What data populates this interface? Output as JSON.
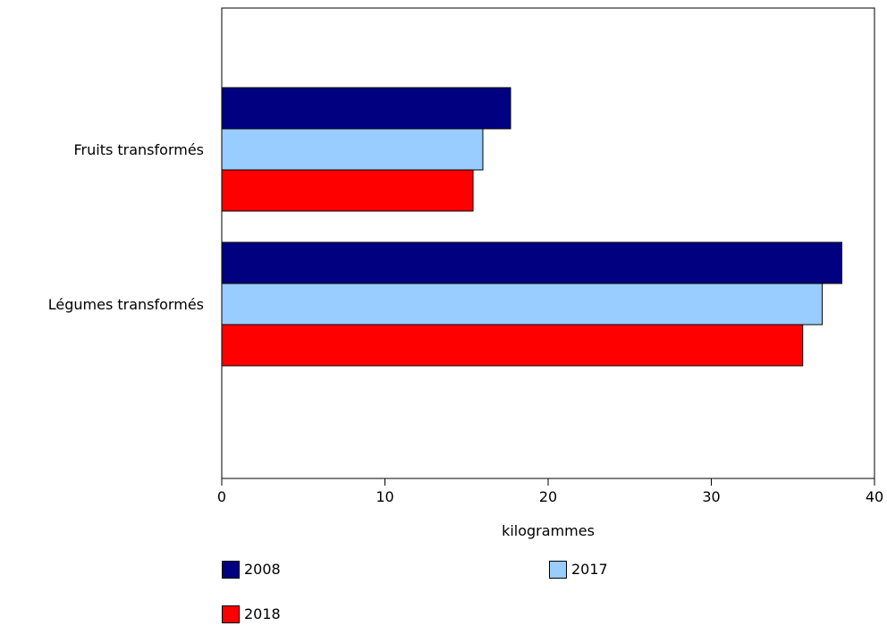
{
  "chart_data": {
    "type": "bar",
    "orientation": "horizontal",
    "title": "",
    "xlabel": "kilogrammes",
    "ylabel": "",
    "categories": [
      "Fruits transformés",
      "Légumes transformés"
    ],
    "series": [
      {
        "name": "2008",
        "color": "#000080",
        "values": [
          17.7,
          38.0
        ]
      },
      {
        "name": "2017",
        "color": "#99CCFF",
        "values": [
          16.0,
          36.8
        ]
      },
      {
        "name": "2018",
        "color": "#FF0000",
        "values": [
          15.4,
          35.6
        ]
      }
    ],
    "xlim": [
      0,
      40
    ],
    "xticks": [
      0,
      10,
      20,
      30,
      40
    ],
    "grid": false,
    "legend_position": "bottom"
  }
}
